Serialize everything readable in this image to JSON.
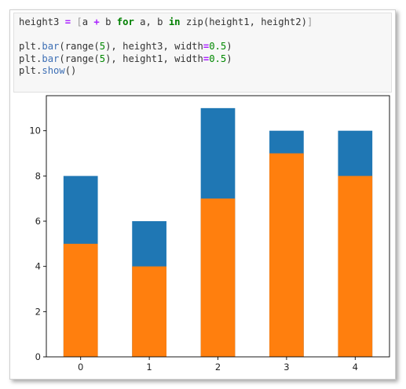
{
  "code": {
    "lines": [
      {
        "tokens": [
          {
            "t": "height3 ",
            "c": ""
          },
          {
            "t": "=",
            "c": "op"
          },
          {
            "t": " [",
            "c": "brk"
          },
          {
            "t": "a ",
            "c": ""
          },
          {
            "t": "+",
            "c": "op"
          },
          {
            "t": " b ",
            "c": ""
          },
          {
            "t": "for",
            "c": "kw"
          },
          {
            "t": " a, b ",
            "c": ""
          },
          {
            "t": "in",
            "c": "kw"
          },
          {
            "t": " zip(height1, height2)",
            "c": ""
          },
          {
            "t": "]",
            "c": "brk"
          }
        ]
      },
      {
        "tokens": []
      },
      {
        "tokens": [
          {
            "t": "plt.",
            "c": ""
          },
          {
            "t": "bar",
            "c": "fn"
          },
          {
            "t": "(range(",
            "c": ""
          },
          {
            "t": "5",
            "c": "num"
          },
          {
            "t": "), height3, width",
            "c": ""
          },
          {
            "t": "=",
            "c": "op"
          },
          {
            "t": "0.5",
            "c": "num"
          },
          {
            "t": ")",
            "c": ""
          }
        ]
      },
      {
        "tokens": [
          {
            "t": "plt.",
            "c": ""
          },
          {
            "t": "bar",
            "c": "fn"
          },
          {
            "t": "(range(",
            "c": ""
          },
          {
            "t": "5",
            "c": "num"
          },
          {
            "t": "), height1, width",
            "c": ""
          },
          {
            "t": "=",
            "c": "op"
          },
          {
            "t": "0.5",
            "c": "num"
          },
          {
            "t": ")",
            "c": ""
          }
        ]
      },
      {
        "tokens": [
          {
            "t": "plt.",
            "c": ""
          },
          {
            "t": "show",
            "c": "fn"
          },
          {
            "t": "()",
            "c": ""
          }
        ]
      }
    ]
  },
  "chart_data": {
    "type": "bar",
    "categories": [
      "0",
      "1",
      "2",
      "3",
      "4"
    ],
    "x": [
      0,
      1,
      2,
      3,
      4
    ],
    "series": [
      {
        "values": [
          8,
          6,
          11,
          10,
          10
        ],
        "color": "#1f77b4"
      },
      {
        "values": [
          5,
          4,
          7,
          9,
          8
        ],
        "color": "#ff7f0e"
      }
    ],
    "bar_width": 0.5,
    "xlim": [
      -0.5,
      4.5
    ],
    "ylim": [
      0,
      11.55
    ],
    "yticks": [
      0,
      2,
      4,
      6,
      8,
      10
    ],
    "xticks": [
      0,
      1,
      2,
      3,
      4
    ],
    "grid": false,
    "title": "",
    "xlabel": "",
    "ylabel": ""
  }
}
